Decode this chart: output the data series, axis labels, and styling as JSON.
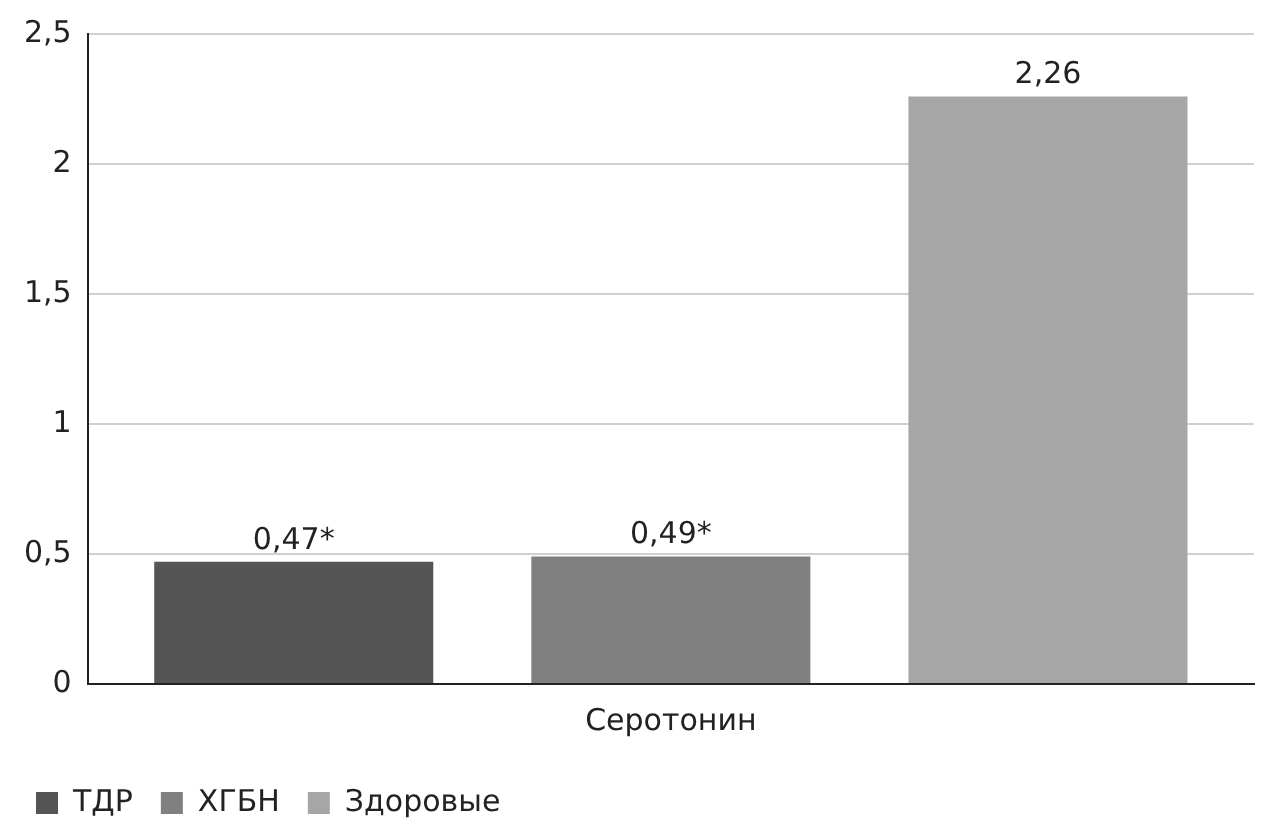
{
  "chart_data": {
    "type": "bar",
    "categories": [
      "Серотонин"
    ],
    "series": [
      {
        "name": "ТДР",
        "color": "#555555",
        "values": [
          0.47
        ],
        "value_labels": [
          "0,47*"
        ]
      },
      {
        "name": "ХГБН",
        "color": "#808080",
        "values": [
          0.49
        ],
        "value_labels": [
          "0,49*"
        ]
      },
      {
        "name": "Здоровые",
        "color": "#a6a6a7",
        "values": [
          2.26
        ],
        "value_labels": [
          "2,26"
        ]
      }
    ],
    "ylim": [
      0,
      2.5
    ],
    "yticks": [
      0,
      {
        "value": 0.5,
        "label": "0,5"
      },
      1,
      {
        "value": 1.5,
        "label": "1,5"
      },
      2,
      {
        "value": 2.5,
        "label": "2,5"
      }
    ],
    "grid": "y",
    "legend": "bottom left"
  }
}
